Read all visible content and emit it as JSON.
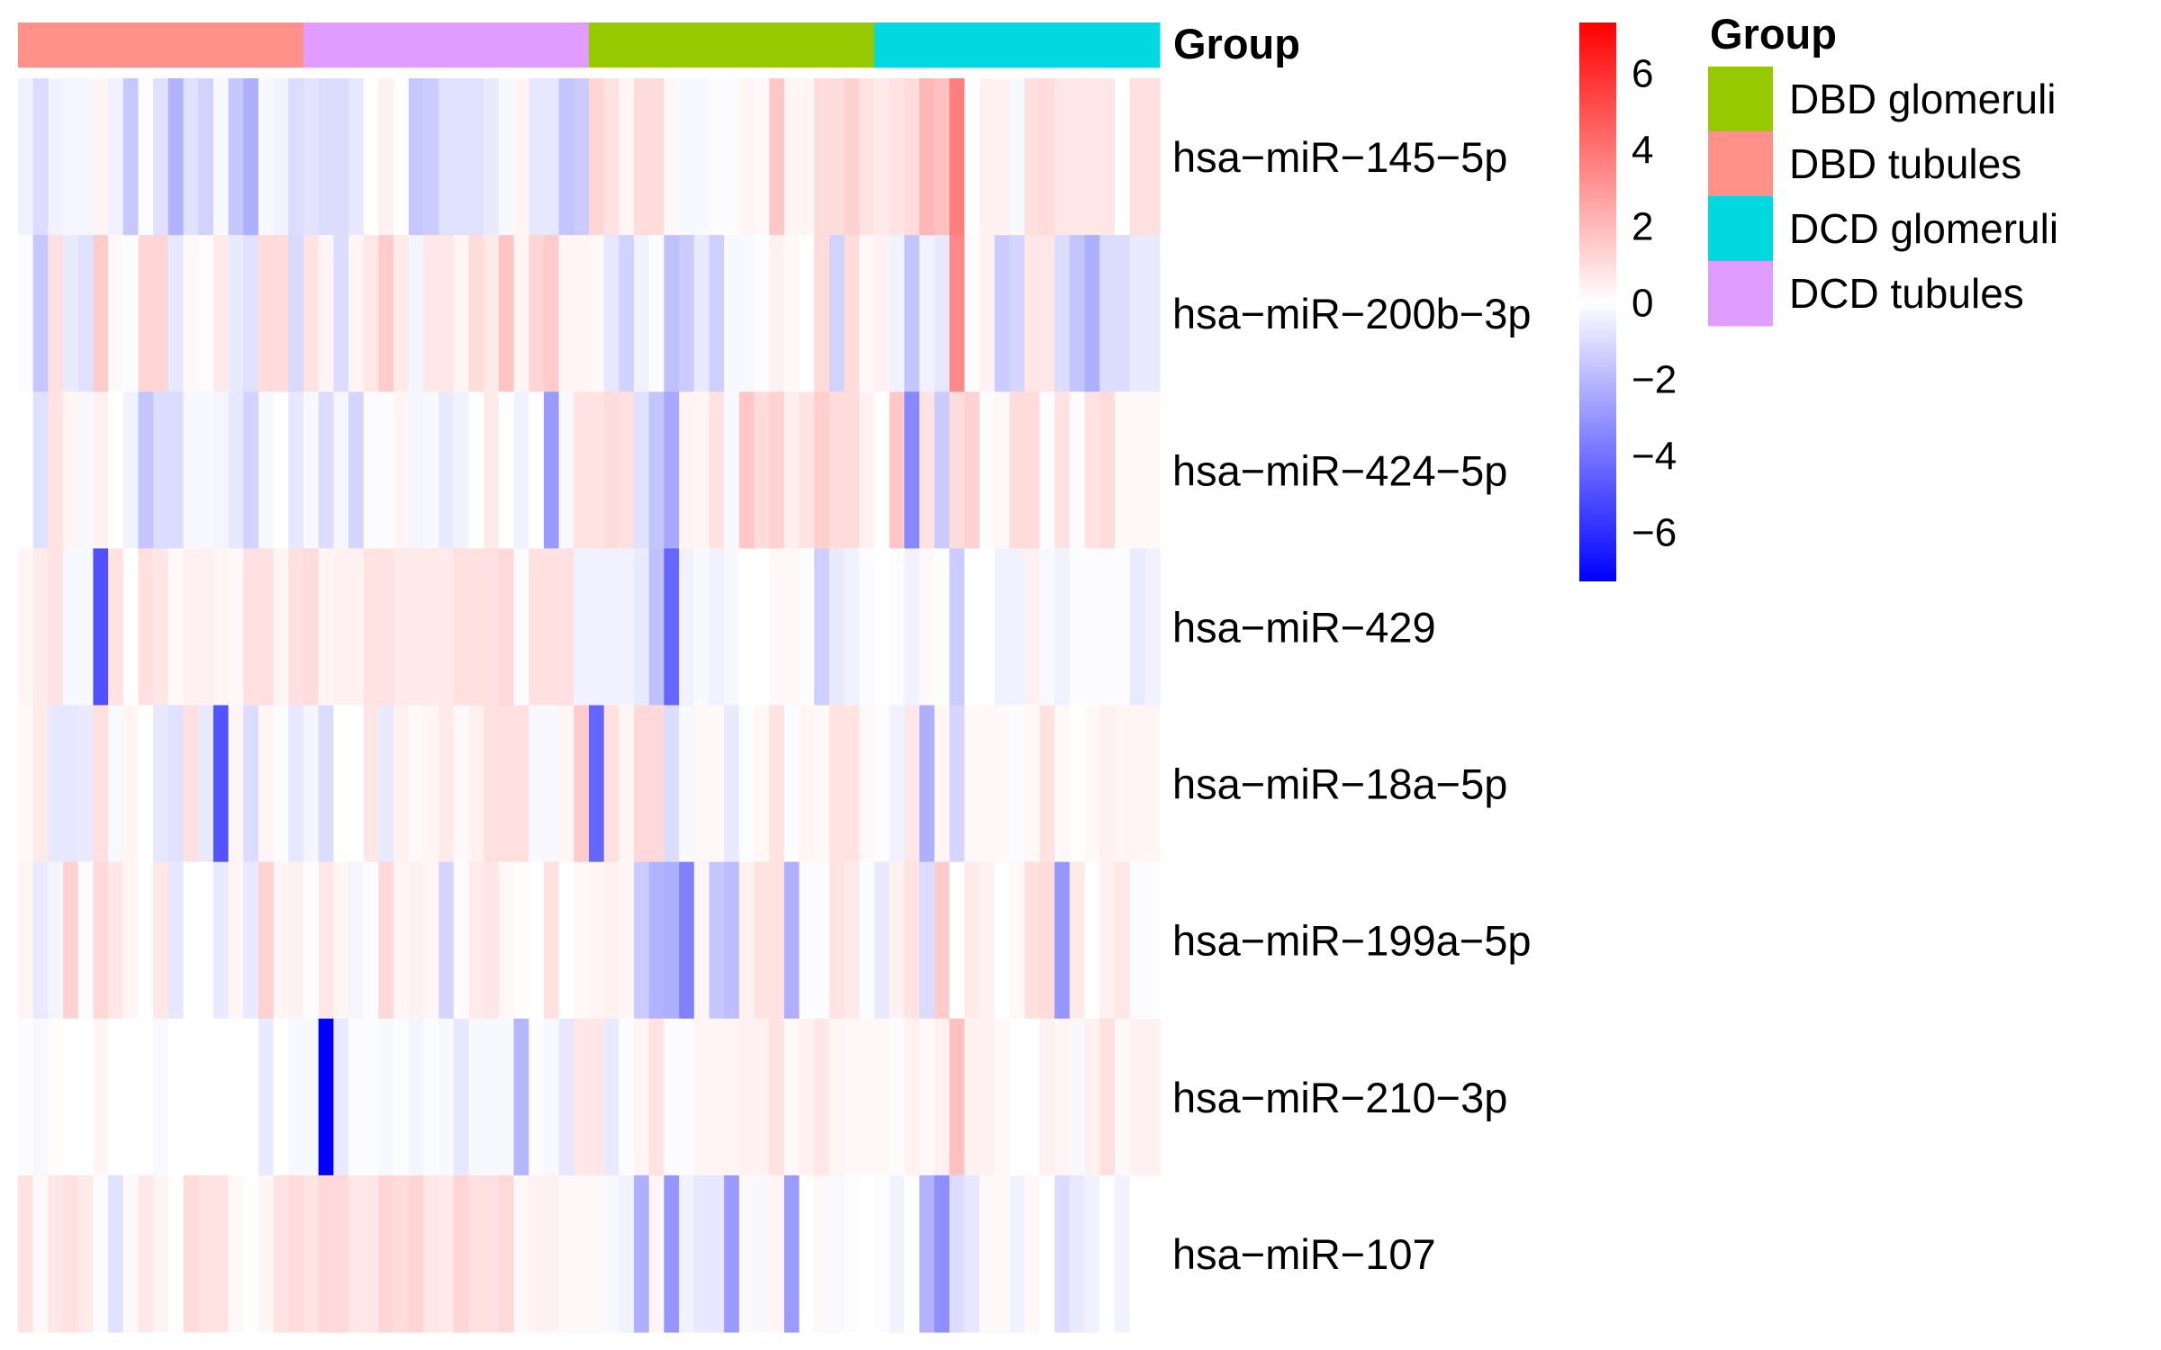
{
  "chart_data": {
    "type": "heatmap",
    "title": "",
    "annotation_title": "Group",
    "legend_title": "Group",
    "legend_position": "right",
    "colorbar": {
      "min": -7.3,
      "max": 7.3,
      "ticks": [
        6,
        4,
        2,
        0,
        -2,
        -4,
        -6
      ],
      "tick_labels": [
        "6",
        "4",
        "2",
        "0",
        "−2",
        "−4",
        "−6"
      ],
      "low_color": "#0000ff",
      "mid_color": "#ffffff",
      "high_color": "#ff0000"
    },
    "groups": [
      {
        "name": "DBD tubules",
        "color": "#ff918a",
        "n_columns": 19
      },
      {
        "name": "DCD tubules",
        "color": "#e09cff",
        "n_columns": 19
      },
      {
        "name": "DBD glomeruli",
        "color": "#97c900",
        "n_columns": 19
      },
      {
        "name": "DCD glomeruli",
        "color": "#00d9e0",
        "n_columns": 19
      }
    ],
    "legend_items": [
      {
        "label": "DBD glomeruli",
        "color": "#97c900"
      },
      {
        "label": "DBD tubules",
        "color": "#ff918a"
      },
      {
        "label": "DCD glomeruli",
        "color": "#00d9e0"
      },
      {
        "label": "DCD tubules",
        "color": "#e09cff"
      }
    ],
    "rows": [
      "hsa−miR−145−5p",
      "hsa−miR−200b−3p",
      "hsa−miR−424−5p",
      "hsa−miR−429",
      "hsa−miR−18a−5p",
      "hsa−miR−199a−5p",
      "hsa−miR−210−3p",
      "hsa−miR−107"
    ],
    "values": [
      [
        -0.4,
        -1.0,
        -0.4,
        -0.3,
        -0.3,
        0.3,
        -0.4,
        -1.6,
        -0.1,
        -0.9,
        -2.2,
        -0.9,
        -1.3,
        -0.2,
        -1.6,
        -2.3,
        -0.2,
        -0.4,
        -1.0,
        -0.8,
        -1.0,
        -1.0,
        -0.7,
        0.0,
        0.4,
        0.0,
        -1.6,
        -1.5,
        -0.9,
        -0.9,
        -0.9,
        -0.6,
        -0.2,
        0.3,
        -0.7,
        -0.7,
        -1.7,
        -1.5,
        1.2,
        0.8,
        0.3,
        1.0,
        1.0,
        0.2,
        -0.2,
        -0.2,
        -0.1,
        -0.1,
        0.3,
        0.2,
        1.6,
        0.3,
        0.3,
        1.0,
        1.0,
        1.3,
        0.8,
        0.6,
        0.8,
        1.0,
        2.1,
        1.8,
        3.7,
        0.0,
        0.4,
        0.4,
        -0.2,
        0.9,
        1.0,
        0.7,
        0.7,
        0.7,
        0.7,
        0.0,
        0.9,
        0.9
      ],
      [
        -0.1,
        -1.6,
        0.9,
        -0.6,
        -0.9,
        1.5,
        0.2,
        -0.1,
        1.2,
        1.2,
        -0.7,
        0.2,
        -0.1,
        0.6,
        -0.6,
        -0.9,
        1.0,
        1.0,
        -1.1,
        0.8,
        0.3,
        -1.0,
        0.3,
        0.7,
        1.5,
        0.6,
        -0.3,
        0.7,
        0.7,
        0.3,
        1.0,
        0.6,
        1.7,
        0.3,
        1.2,
        1.5,
        0.3,
        0.3,
        0.2,
        -0.7,
        -1.3,
        -0.4,
        -0.1,
        -1.8,
        -1.5,
        -0.6,
        -1.4,
        -0.2,
        -0.2,
        -0.1,
        0.4,
        0.2,
        0.0,
        1.0,
        -1.3,
        1.0,
        0.2,
        0.4,
        -0.4,
        -1.7,
        -0.4,
        -0.7,
        3.4,
        -0.1,
        0.4,
        -1.5,
        -1.2,
        0.7,
        0.7,
        -1.0,
        -1.7,
        -2.3,
        -1.0,
        -1.0,
        -0.6,
        -0.6
      ],
      [
        0.0,
        -0.9,
        0.8,
        0.3,
        -0.2,
        0.4,
        0.0,
        -0.4,
        -1.7,
        -1.0,
        -1.0,
        -0.2,
        -0.2,
        -0.3,
        -0.7,
        -1.3,
        -0.2,
        0.0,
        -0.7,
        -0.2,
        -1.0,
        -0.3,
        -1.2,
        -0.1,
        -0.1,
        0.3,
        -0.3,
        -0.2,
        -0.6,
        -0.4,
        0.0,
        0.6,
        0.0,
        -0.4,
        0.0,
        -2.9,
        -0.2,
        0.8,
        0.8,
        1.0,
        0.9,
        -0.9,
        -1.7,
        -2.5,
        0.3,
        0.3,
        0.8,
        -0.2,
        1.6,
        1.0,
        1.3,
        0.5,
        0.8,
        1.4,
        1.0,
        1.0,
        0.4,
        0.0,
        1.6,
        -3.4,
        0.8,
        -1.5,
        1.0,
        1.3,
        -0.1,
        0.2,
        1.0,
        1.0,
        -0.1,
        0.8,
        -0.1,
        0.8,
        1.0,
        0.2,
        0.2,
        0.2
      ],
      [
        0.3,
        0.6,
        0.8,
        -0.2,
        -0.2,
        -5.0,
        0.8,
        0.0,
        0.9,
        0.7,
        0.2,
        0.4,
        0.4,
        0.3,
        0.2,
        0.9,
        0.9,
        0.3,
        0.9,
        1.0,
        0.3,
        0.4,
        0.4,
        0.8,
        0.8,
        0.6,
        0.6,
        0.6,
        0.6,
        0.9,
        0.9,
        0.9,
        1.1,
        -0.1,
        0.9,
        0.9,
        0.9,
        -0.4,
        -0.4,
        -0.4,
        -0.4,
        -0.6,
        -1.8,
        -4.4,
        -0.4,
        -0.2,
        -0.4,
        -0.2,
        0.0,
        0.0,
        0.2,
        0.2,
        -0.1,
        -1.4,
        -0.6,
        -0.4,
        -0.1,
        0.0,
        -0.1,
        -0.4,
        0.2,
        -0.1,
        -1.5,
        0.0,
        0.0,
        -0.4,
        -0.4,
        0.4,
        -0.2,
        -0.4,
        -0.1,
        -0.1,
        -0.1,
        -0.1,
        -0.6,
        -0.4
      ],
      [
        0.2,
        0.6,
        -0.7,
        -0.7,
        -0.6,
        0.9,
        -0.2,
        0.3,
        0.0,
        -0.7,
        -0.9,
        0.9,
        -0.6,
        -4.9,
        0.3,
        -1.0,
        0.3,
        -0.1,
        -0.7,
        -0.3,
        -1.0,
        0.0,
        0.0,
        0.7,
        -0.6,
        0.4,
        0.2,
        0.3,
        0.6,
        0.2,
        0.4,
        0.9,
        0.9,
        0.9,
        -0.2,
        -0.2,
        0.3,
        1.5,
        -4.4,
        0.9,
        0.3,
        1.1,
        1.1,
        -1.0,
        -0.2,
        0.2,
        0.2,
        -0.6,
        -0.1,
        0.2,
        0.8,
        -0.1,
        0.3,
        0.2,
        0.8,
        0.8,
        0.2,
        -0.1,
        -0.4,
        0.7,
        -2.3,
        0.3,
        -1.2,
        0.2,
        0.2,
        0.2,
        -0.1,
        0.2,
        0.8,
        0.2,
        0.0,
        0.2,
        0.4,
        0.3,
        0.3,
        0.3
      ],
      [
        0.3,
        -0.6,
        -0.3,
        1.3,
        -0.1,
        1.1,
        0.7,
        0.3,
        0.0,
        0.7,
        -0.7,
        0.0,
        0.0,
        -0.6,
        0.3,
        -0.6,
        1.3,
        0.3,
        0.4,
        -0.1,
        0.7,
        0.3,
        -0.3,
        -0.1,
        1.1,
        0.3,
        0.4,
        0.3,
        -1.2,
        -0.1,
        0.6,
        0.7,
        0.2,
        0.1,
        0.0,
        0.9,
        0.0,
        0.2,
        0.3,
        0.4,
        0.3,
        -1.5,
        -2.2,
        -2.3,
        -3.6,
        0.3,
        -1.6,
        -1.9,
        0.4,
        0.8,
        0.8,
        -2.3,
        -0.1,
        -0.1,
        0.8,
        0.6,
        -0.1,
        -0.6,
        0.4,
        0.8,
        -1.0,
        1.5,
        0.0,
        0.6,
        0.4,
        0.0,
        0.2,
        0.9,
        1.0,
        -3.0,
        0.6,
        0.0,
        0.4,
        0.7,
        -0.1,
        -0.1
      ],
      [
        -0.1,
        -0.2,
        0.1,
        0.0,
        0.0,
        0.3,
        0.0,
        0.0,
        0.0,
        -0.2,
        0.0,
        0.0,
        0.0,
        0.0,
        0.0,
        0.0,
        -0.6,
        0.0,
        -0.2,
        -0.2,
        -7.3,
        -0.6,
        -0.1,
        -0.1,
        -0.2,
        -0.1,
        -0.3,
        -0.1,
        -0.2,
        -0.7,
        -0.2,
        -0.2,
        -0.2,
        -2.1,
        -0.1,
        -0.2,
        -0.7,
        0.7,
        0.7,
        -0.6,
        -0.1,
        0.3,
        0.8,
        -0.1,
        -0.1,
        0.3,
        0.3,
        0.3,
        0.4,
        0.4,
        0.8,
        0.2,
        0.4,
        0.7,
        0.3,
        0.2,
        0.2,
        0.2,
        -0.1,
        0.4,
        0.2,
        0.4,
        1.8,
        0.4,
        0.4,
        0.2,
        0.0,
        0.0,
        0.4,
        0.3,
        -0.2,
        0.4,
        0.9,
        0.2,
        0.4,
        0.4
      ],
      [
        0.8,
        0.2,
        0.7,
        0.9,
        0.6,
        -0.1,
        -0.9,
        0.2,
        0.7,
        0.3,
        0.0,
        1.0,
        0.8,
        0.8,
        0.2,
        0.0,
        0.3,
        0.8,
        1.0,
        0.8,
        1.1,
        1.1,
        0.7,
        0.7,
        1.2,
        1.0,
        1.2,
        0.7,
        0.6,
        1.2,
        0.9,
        0.9,
        1.1,
        0.2,
        0.4,
        0.4,
        0.2,
        0.2,
        0.2,
        -0.2,
        -0.4,
        -2.3,
        0.3,
        -3.0,
        -0.4,
        -0.7,
        -0.7,
        -2.9,
        0.2,
        -0.2,
        0.3,
        -2.9,
        0.0,
        0.2,
        -0.2,
        -0.1,
        0.0,
        -0.1,
        -0.4,
        0.0,
        -2.2,
        -3.2,
        -1.0,
        -0.7,
        0.2,
        0.2,
        -0.4,
        0.2,
        0.0,
        -1.0,
        -0.6,
        -0.4,
        0.0,
        -0.4,
        0.0,
        0.0
      ]
    ]
  }
}
